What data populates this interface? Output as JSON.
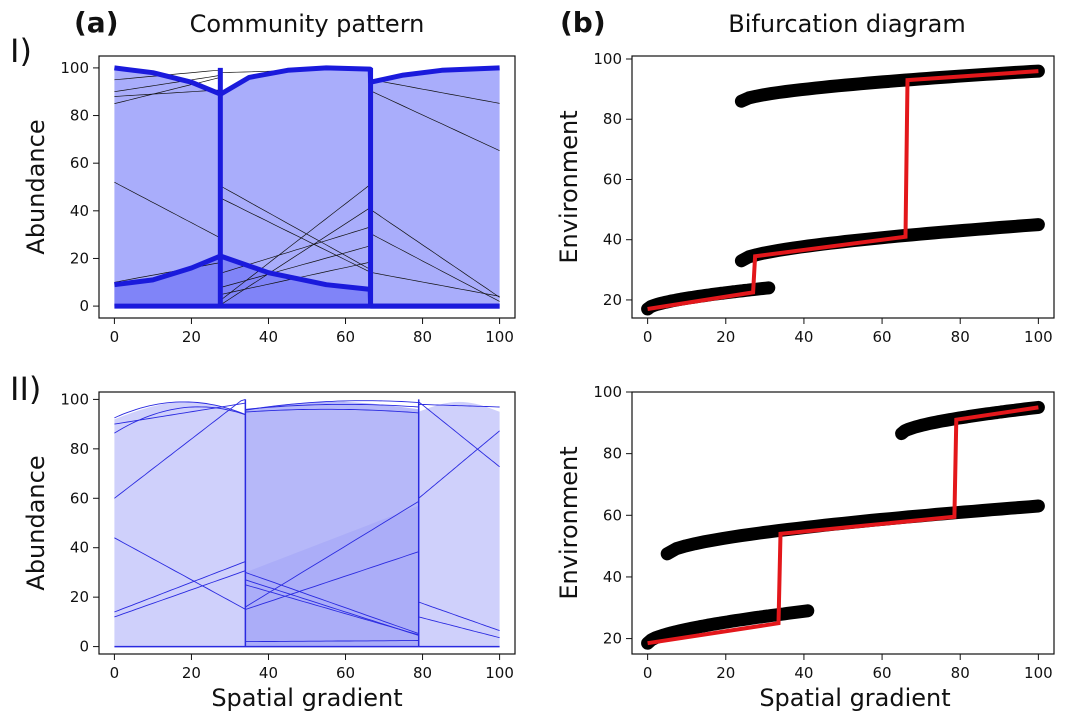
{
  "figure": {
    "panel_a_label": "(a)",
    "panel_a_title": "Community pattern",
    "panel_b_label": "(b)",
    "panel_b_title": "Bifurcation diagram",
    "row1_label": "I)",
    "row2_label": "II)",
    "xlabel": "Spatial gradient"
  },
  "colors": {
    "community_fill_row1": "#a9adfb",
    "community_fill_row1_dark": "#7579f7",
    "community_line_row1": "#1a1adc",
    "community_fill_row2": "#cfd0fb",
    "community_fill_row2_dark": "#9ea0f7",
    "community_line_row2": "#2a2ae0",
    "branch_points": "#000000",
    "path_line": "#e3171b"
  },
  "chart_data": [
    {
      "id": "community-I",
      "type": "area",
      "title": "",
      "xlabel": "",
      "ylabel": "Abundance",
      "xlim": [
        -4,
        104
      ],
      "ylim": [
        -5,
        105
      ],
      "xticks": [
        0,
        20,
        40,
        60,
        80,
        100
      ],
      "yticks": [
        0,
        20,
        40,
        60,
        80,
        100
      ],
      "regime_boundaries": [
        27.5,
        66.5
      ],
      "dominant_abundance": {
        "x": [
          0,
          10,
          20,
          27.5,
          27.6,
          35,
          45,
          55,
          66.4,
          66.5,
          75,
          85,
          100
        ],
        "y": [
          100,
          98,
          94,
          89,
          89,
          96,
          99,
          100,
          99.5,
          94,
          97,
          99,
          100
        ]
      },
      "subdominant_abundance": {
        "x": [
          0,
          10,
          20,
          27.5,
          27.6,
          40,
          55,
          66.4,
          66.5,
          100
        ],
        "y": [
          9,
          11,
          16,
          21,
          21,
          14,
          9,
          7,
          0,
          0
        ]
      }
    },
    {
      "id": "bifurcation-I",
      "type": "scatter",
      "title": "",
      "xlabel": "",
      "ylabel": "Environment",
      "xlim": [
        -4,
        104
      ],
      "ylim": [
        14,
        101
      ],
      "xticks": [
        0,
        20,
        40,
        60,
        80,
        100
      ],
      "yticks": [
        20,
        40,
        60,
        80,
        100
      ],
      "branches": [
        {
          "x_start": 0,
          "x_end": 31,
          "y_start": 17,
          "y_end": 24
        },
        {
          "x_start": 24,
          "x_end": 100,
          "y_start": 33,
          "y_end": 45
        },
        {
          "x_start": 24,
          "x_end": 100,
          "y_start": 86,
          "y_end": 96
        }
      ],
      "path": {
        "x": [
          0,
          27,
          27.5,
          66,
          66.5,
          100
        ],
        "y": [
          17,
          22.5,
          34.5,
          41,
          93,
          96
        ]
      }
    },
    {
      "id": "community-II",
      "type": "area",
      "title": "",
      "xlabel": "Spatial gradient",
      "ylabel": "Abundance",
      "xlim": [
        -4,
        104
      ],
      "ylim": [
        -3,
        103
      ],
      "xticks": [
        0,
        20,
        40,
        60,
        80,
        100
      ],
      "yticks": [
        0,
        20,
        40,
        60,
        80,
        100
      ],
      "regime_boundaries": [
        34,
        79
      ]
    },
    {
      "id": "bifurcation-II",
      "type": "scatter",
      "title": "",
      "xlabel": "Spatial gradient",
      "ylabel": "Environment",
      "xlim": [
        -4,
        104
      ],
      "ylim": [
        15,
        100
      ],
      "xticks": [
        0,
        20,
        40,
        60,
        80,
        100
      ],
      "yticks": [
        20,
        40,
        60,
        80,
        100
      ],
      "branches": [
        {
          "x_start": 0,
          "x_end": 41,
          "y_start": 18.5,
          "y_end": 29
        },
        {
          "x_start": 5,
          "x_end": 100,
          "y_start": 47.5,
          "y_end": 63
        },
        {
          "x_start": 65,
          "x_end": 100,
          "y_start": 86.5,
          "y_end": 95
        }
      ],
      "path": {
        "x": [
          0,
          33.5,
          34,
          78.5,
          79,
          100
        ],
        "y": [
          18.5,
          25,
          54,
          59.5,
          91,
          95
        ]
      }
    }
  ]
}
